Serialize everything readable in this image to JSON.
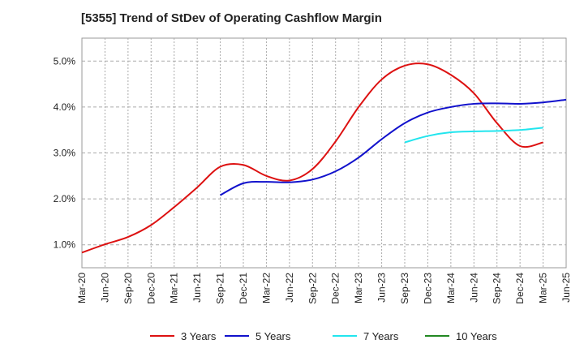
{
  "chart_data": {
    "type": "line",
    "title": "[5355]  Trend of StDev of Operating Cashflow Margin",
    "xlabel": "",
    "ylabel": "",
    "ylim": [
      0.5,
      5.5
    ],
    "y_ticks": [
      "1.0%",
      "2.0%",
      "3.0%",
      "4.0%",
      "5.0%"
    ],
    "y_tick_values": [
      1.0,
      2.0,
      3.0,
      4.0,
      5.0
    ],
    "x_ticks": [
      "Mar-20",
      "Jun-20",
      "Sep-20",
      "Dec-20",
      "Mar-21",
      "Jun-21",
      "Sep-21",
      "Dec-21",
      "Mar-22",
      "Jun-22",
      "Sep-22",
      "Dec-22",
      "Mar-23",
      "Jun-23",
      "Sep-23",
      "Dec-23",
      "Mar-24",
      "Jun-24",
      "Sep-24",
      "Dec-24",
      "Mar-25",
      "Jun-25"
    ],
    "grid": true,
    "legend_position": "bottom",
    "series": [
      {
        "name": "3 Years",
        "color": "#dd1111",
        "start_index": 0,
        "values": [
          0.83,
          1.01,
          1.17,
          1.43,
          1.82,
          2.25,
          2.7,
          2.74,
          2.5,
          2.4,
          2.65,
          3.25,
          4.0,
          4.6,
          4.9,
          4.93,
          4.7,
          4.3,
          3.65,
          3.15,
          3.23
        ]
      },
      {
        "name": "5 Years",
        "color": "#1111cc",
        "start_index": 6,
        "values": [
          2.08,
          2.34,
          2.37,
          2.36,
          2.42,
          2.6,
          2.9,
          3.3,
          3.65,
          3.88,
          4.0,
          4.07,
          4.08,
          4.07,
          4.1,
          4.16
        ]
      },
      {
        "name": "7 Years",
        "color": "#22e5ee",
        "start_index": 14,
        "values": [
          3.23,
          3.37,
          3.45,
          3.47,
          3.48,
          3.5,
          3.55
        ]
      },
      {
        "name": "10 Years",
        "color": "#228822",
        "start_index": 21,
        "values": []
      }
    ]
  }
}
